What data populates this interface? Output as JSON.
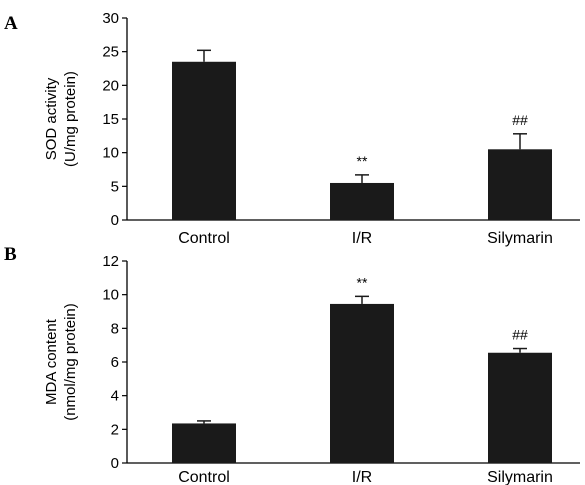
{
  "chart_data": [
    {
      "panel": "A",
      "type": "bar",
      "categories": [
        "Control",
        "I/R",
        "Silymarin"
      ],
      "values": [
        23.5,
        5.5,
        10.5
      ],
      "errors": [
        1.7,
        1.2,
        2.3
      ],
      "annotations": [
        "",
        "**",
        "##"
      ],
      "ylabel": [
        "SOD activity",
        "(U/mg protein)"
      ],
      "ylim": [
        0,
        30
      ],
      "yticks": [
        0,
        5,
        10,
        15,
        20,
        25,
        30
      ],
      "grid": false,
      "bar_color": "#1a1a1a"
    },
    {
      "panel": "B",
      "type": "bar",
      "categories": [
        "Control",
        "I/R",
        "Silymarin"
      ],
      "values": [
        2.35,
        9.45,
        6.55
      ],
      "errors": [
        0.15,
        0.45,
        0.25
      ],
      "annotations": [
        "",
        "**",
        "##"
      ],
      "ylabel": [
        "MDA content",
        "(nmol/mg protein)"
      ],
      "ylim": [
        0,
        12
      ],
      "yticks": [
        0,
        2,
        4,
        6,
        8,
        10,
        12
      ],
      "grid": false,
      "bar_color": "#1a1a1a"
    }
  ]
}
